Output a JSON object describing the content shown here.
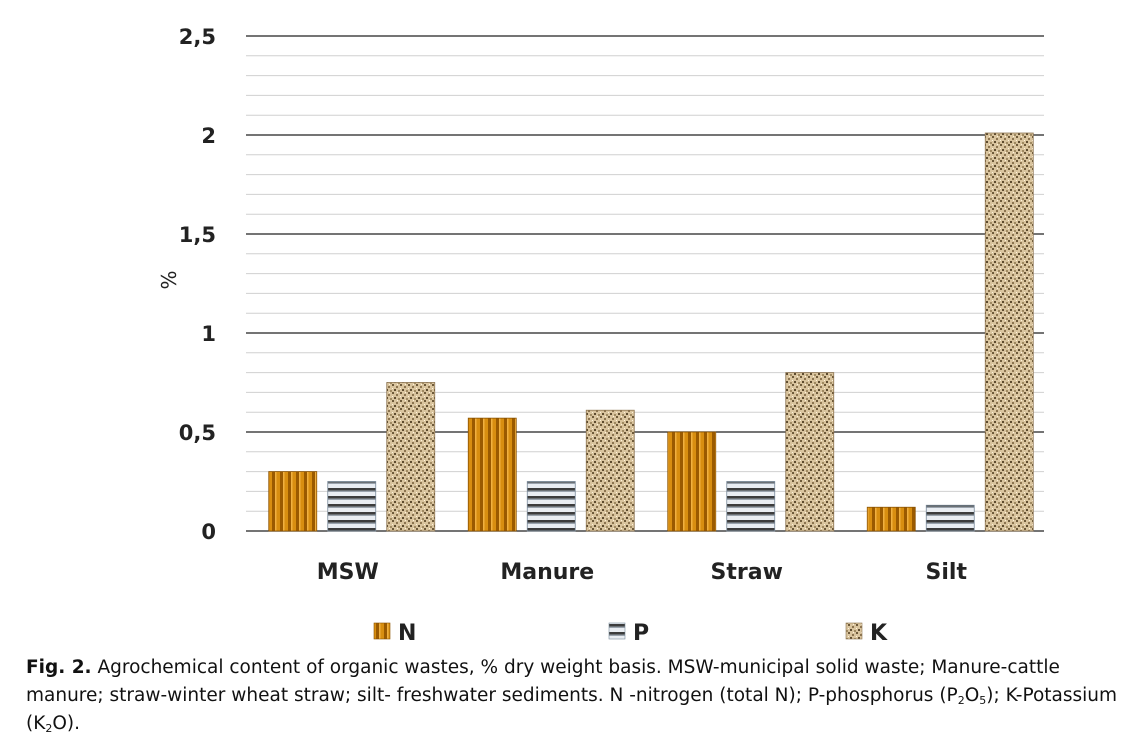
{
  "chart_data": {
    "type": "bar",
    "categories": [
      "MSW",
      "Manure",
      "Straw",
      "Silt"
    ],
    "series": [
      {
        "name": "N",
        "values": [
          0.3,
          0.57,
          0.5,
          0.12
        ]
      },
      {
        "name": "P",
        "values": [
          0.25,
          0.25,
          0.25,
          0.13
        ]
      },
      {
        "name": "K",
        "values": [
          0.75,
          0.61,
          0.8,
          2.01
        ]
      }
    ],
    "ylabel": "%",
    "ylim": [
      0,
      2.5
    ],
    "yticks": [
      "0",
      "0,5",
      "1",
      "1,5",
      "2",
      "2,5"
    ],
    "grid": true,
    "legend": "bottom",
    "colors": {
      "N": "#d4890a",
      "P": "#c9d3de",
      "K": "#cdb48c"
    }
  },
  "caption": {
    "label": "Fig. 2.",
    "text1": " Agrochemical content of organic wastes, % dry weight basis. MSW-municipal solid waste; Manure-cattle manure; straw-winter wheat straw; silt- freshwater sediments. N -nitrogen (total N); P-phosphorus (P",
    "p_sub1": "2",
    "p_o": "O",
    "p_sub2": "5",
    "text2": "); K-Potassium (K",
    "k_sub1": "2",
    "k_o": "O",
    "text3": ")."
  }
}
